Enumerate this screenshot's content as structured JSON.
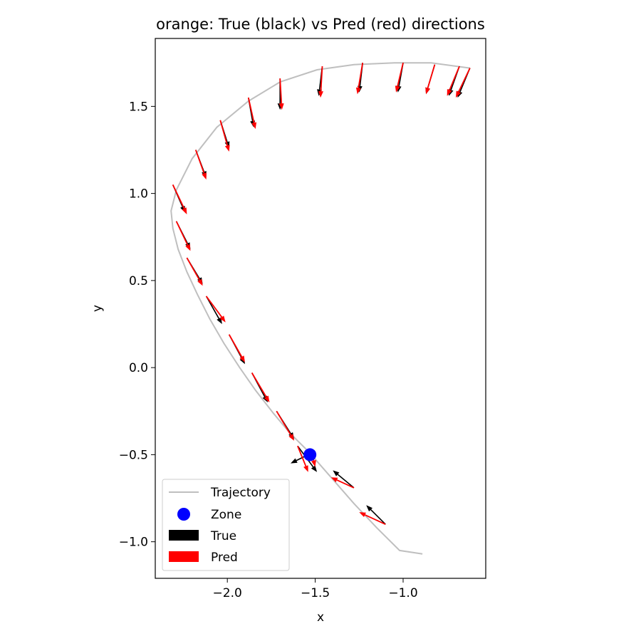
{
  "chart_data": {
    "type": "quiver",
    "title": "orange: True (black) vs Pred (red) directions",
    "xlabel": "x",
    "ylabel": "y",
    "xlim": [
      -2.41,
      -0.53
    ],
    "ylim": [
      -1.21,
      1.89
    ],
    "xticks": [
      -2.0,
      -1.5,
      -1.0
    ],
    "xtick_labels": [
      "−2.0",
      "−1.5",
      "−1.0"
    ],
    "yticks": [
      -1.0,
      -0.5,
      0.0,
      0.5,
      1.0,
      1.5
    ],
    "ytick_labels": [
      "−1.0",
      "−0.5",
      "0.0",
      "0.5",
      "1.0",
      "1.5"
    ],
    "grid": false,
    "legend_position": "lower-left",
    "legend": [
      {
        "label": "Trajectory",
        "kind": "line",
        "color": "#bfbfbf"
      },
      {
        "label": "Zone",
        "kind": "marker",
        "color": "#0000ff"
      },
      {
        "label": "True",
        "kind": "patch",
        "color": "#000000"
      },
      {
        "label": "Pred",
        "kind": "patch",
        "color": "#ff0000"
      }
    ],
    "trajectory": {
      "name": "Trajectory",
      "color": "#bfbfbf",
      "x": [
        -0.62,
        -0.84,
        -1.05,
        -1.28,
        -1.49,
        -1.7,
        -1.88,
        -2.06,
        -2.2,
        -2.29,
        -2.32,
        -2.31,
        -2.28,
        -2.23,
        -2.17,
        -2.1,
        -2.02,
        -1.93,
        -1.84,
        -1.74,
        -1.64,
        -1.54,
        -1.41,
        -1.28,
        -1.15,
        -1.02,
        -0.89
      ],
      "y": [
        1.72,
        1.75,
        1.75,
        1.74,
        1.71,
        1.64,
        1.53,
        1.38,
        1.2,
        1.02,
        0.9,
        0.8,
        0.68,
        0.55,
        0.42,
        0.28,
        0.14,
        0.0,
        -0.13,
        -0.26,
        -0.38,
        -0.48,
        -0.63,
        -0.78,
        -0.92,
        -1.05,
        -1.07
      ]
    },
    "zone": {
      "name": "Zone",
      "color": "#0000ff",
      "x": -1.53,
      "y": -0.5
    },
    "arrows_true": {
      "name": "True",
      "color": "#000000",
      "x0": [
        -0.62,
        -0.68,
        -0.82,
        -1.0,
        -1.23,
        -1.46,
        -1.7,
        -1.88,
        -2.04,
        -2.18,
        -2.31,
        -2.29,
        -2.23,
        -2.12,
        -1.99,
        -1.86,
        -1.72,
        -1.6,
        -1.52,
        -1.28,
        -1.1
      ],
      "y0": [
        1.72,
        1.73,
        1.74,
        1.75,
        1.75,
        1.73,
        1.66,
        1.55,
        1.42,
        1.25,
        1.05,
        0.84,
        0.63,
        0.41,
        0.19,
        -0.03,
        -0.25,
        -0.45,
        -0.49,
        -0.69,
        -0.9
      ],
      "dx": [
        -0.07,
        -0.06,
        -0.05,
        -0.03,
        -0.02,
        -0.02,
        0.0,
        0.03,
        0.05,
        0.06,
        0.07,
        0.08,
        0.09,
        0.09,
        0.09,
        0.09,
        0.1,
        0.11,
        -0.12,
        -0.12,
        -0.11
      ],
      "dy": [
        -0.17,
        -0.17,
        -0.17,
        -0.17,
        -0.17,
        -0.17,
        -0.18,
        -0.17,
        -0.16,
        -0.16,
        -0.16,
        -0.16,
        -0.15,
        -0.16,
        -0.17,
        -0.17,
        -0.16,
        -0.15,
        -0.06,
        0.1,
        0.11
      ]
    },
    "arrows_pred": {
      "name": "Pred",
      "color": "#ff0000",
      "x0": [
        -0.62,
        -0.68,
        -0.82,
        -1.0,
        -1.23,
        -1.46,
        -1.7,
        -1.88,
        -2.04,
        -2.18,
        -2.31,
        -2.29,
        -2.23,
        -2.12,
        -1.99,
        -1.86,
        -1.72,
        -1.6,
        -1.52,
        -1.28,
        -1.1
      ],
      "y0": [
        1.72,
        1.73,
        1.74,
        1.75,
        1.75,
        1.73,
        1.66,
        1.55,
        1.42,
        1.25,
        1.05,
        0.84,
        0.63,
        0.41,
        0.19,
        -0.03,
        -0.25,
        -0.45,
        -0.49,
        -0.69,
        -0.9
      ],
      "dx": [
        -0.08,
        -0.07,
        -0.05,
        -0.04,
        -0.03,
        -0.01,
        0.01,
        0.04,
        0.05,
        0.06,
        0.08,
        0.08,
        0.09,
        0.11,
        0.09,
        0.1,
        0.1,
        0.06,
        0.02,
        -0.13,
        -0.15
      ],
      "dy": [
        -0.17,
        -0.17,
        -0.17,
        -0.17,
        -0.18,
        -0.18,
        -0.18,
        -0.18,
        -0.18,
        -0.17,
        -0.17,
        -0.17,
        -0.16,
        -0.15,
        -0.16,
        -0.17,
        -0.17,
        -0.15,
        -0.08,
        0.06,
        0.07
      ]
    }
  }
}
